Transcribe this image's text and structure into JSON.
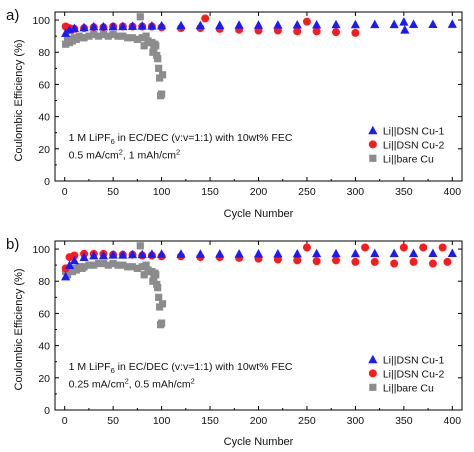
{
  "chart_data": [
    {
      "panel": "a)",
      "type": "scatter",
      "xlabel": "Cycle Number",
      "ylabel": "Coulombic Efficiency (%)",
      "xlim": [
        -10,
        410
      ],
      "ylim": [
        0,
        105
      ],
      "xticks": [
        0,
        50,
        100,
        150,
        200,
        250,
        300,
        350,
        400
      ],
      "yticks": [
        0,
        20,
        40,
        60,
        80,
        100
      ],
      "grid": false,
      "legend_position": "bottom-right",
      "annotation": {
        "line1_pre": "1 M LiPF",
        "line1_sub": "6",
        "line1_post": " in EC/DEC (v:v=1:1) with 10wt% FEC",
        "line2_a": "0.5 mA/cm",
        "line2_sup1": "2",
        "line2_b": ", 1 mAh/cm",
        "line2_sup2": "2"
      },
      "series": [
        {
          "name": "Li||DSN Cu-1",
          "color": "#1a1aff",
          "marker": "triangle",
          "x": [
            1,
            5,
            10,
            20,
            30,
            40,
            50,
            60,
            70,
            80,
            90,
            100,
            120,
            140,
            160,
            180,
            200,
            220,
            240,
            260,
            280,
            300,
            320,
            340,
            350,
            351,
            360,
            380,
            400
          ],
          "y": [
            92,
            94,
            95,
            95.5,
            96,
            96,
            96,
            96.2,
            96.3,
            96.5,
            96.5,
            96.6,
            96.7,
            96.8,
            96.9,
            97,
            97,
            97.1,
            97.2,
            97.2,
            97.3,
            97.3,
            97.4,
            97.4,
            99,
            94,
            97.5,
            97.5,
            97.6
          ]
        },
        {
          "name": "Li||DSN Cu-2",
          "color": "#ff1a1a",
          "marker": "circle",
          "x": [
            1,
            5,
            10,
            20,
            30,
            40,
            50,
            60,
            70,
            80,
            90,
            100,
            120,
            140,
            145,
            160,
            180,
            200,
            220,
            240,
            250,
            260,
            280,
            300
          ],
          "y": [
            96,
            95,
            94.5,
            95,
            95.5,
            95.5,
            96,
            96,
            96,
            96,
            96,
            95.5,
            95,
            95,
            101,
            94.5,
            94,
            93.5,
            93.5,
            93,
            99,
            93,
            92.5,
            92
          ]
        },
        {
          "name": "Li||bare Cu",
          "color": "#8c8c8c",
          "marker": "square",
          "x": [
            1,
            3,
            5,
            8,
            10,
            12,
            15,
            18,
            20,
            25,
            30,
            35,
            40,
            45,
            50,
            55,
            60,
            65,
            70,
            75,
            78,
            80,
            82,
            84,
            86,
            88,
            90,
            91,
            92,
            93,
            94,
            95,
            96,
            97,
            98,
            99,
            100,
            101
          ],
          "y": [
            85,
            88,
            86,
            87,
            89,
            88,
            90,
            89,
            89,
            90,
            91,
            90,
            91,
            90,
            91,
            90,
            90,
            89,
            89,
            88,
            102,
            89,
            84,
            90,
            87,
            86,
            86,
            80,
            82,
            85,
            84,
            78,
            76,
            70,
            64,
            53,
            54,
            66
          ]
        }
      ]
    },
    {
      "panel": "b)",
      "type": "scatter",
      "xlabel": "Cycle Number",
      "ylabel": "Coulombic Efficiency (%)",
      "xlim": [
        -10,
        410
      ],
      "ylim": [
        0,
        105
      ],
      "xticks": [
        0,
        50,
        100,
        150,
        200,
        250,
        300,
        350,
        400
      ],
      "yticks": [
        0,
        20,
        40,
        60,
        80,
        100
      ],
      "grid": false,
      "legend_position": "bottom-right",
      "annotation": {
        "line1_pre": "1 M LiPF",
        "line1_sub": "6",
        "line1_post": " in EC/DEC (v:v=1:1) with 10wt% FEC",
        "line2_a": "0.25 mA/cm",
        "line2_sup1": "2",
        "line2_b": ", 0.5 mAh/cm",
        "line2_sup2": "2"
      },
      "series": [
        {
          "name": "Li||DSN Cu-1",
          "color": "#1a1aff",
          "marker": "triangle",
          "x": [
            1,
            5,
            10,
            20,
            30,
            40,
            50,
            60,
            70,
            80,
            90,
            100,
            120,
            140,
            160,
            180,
            200,
            220,
            240,
            260,
            280,
            300,
            320,
            340,
            360,
            380,
            400
          ],
          "y": [
            83,
            90,
            93,
            95,
            96,
            96,
            96.5,
            96.5,
            96.7,
            96.8,
            97,
            97,
            97,
            97,
            97.1,
            97.1,
            97.2,
            97.2,
            97.2,
            97.3,
            97.3,
            97.3,
            97.4,
            97.4,
            97.4,
            97.5,
            97.5
          ]
        },
        {
          "name": "Li||DSN Cu-2",
          "color": "#ff1a1a",
          "marker": "circle",
          "x": [
            1,
            5,
            10,
            20,
            30,
            40,
            50,
            60,
            70,
            80,
            90,
            100,
            120,
            140,
            160,
            180,
            200,
            220,
            240,
            250,
            260,
            280,
            300,
            310,
            320,
            340,
            350,
            360,
            370,
            380,
            390,
            395
          ],
          "y": [
            88,
            95,
            96,
            97,
            97,
            97,
            96.5,
            96.5,
            96.5,
            96,
            96,
            95.5,
            95.5,
            95,
            95,
            94.5,
            94,
            93.5,
            93,
            101,
            92.5,
            93,
            92,
            101,
            92,
            91,
            101,
            92,
            101,
            91,
            101,
            92
          ]
        },
        {
          "name": "Li||bare Cu",
          "color": "#8c8c8c",
          "marker": "square",
          "x": [
            1,
            3,
            5,
            8,
            10,
            12,
            15,
            18,
            20,
            25,
            30,
            35,
            40,
            45,
            50,
            55,
            60,
            65,
            70,
            75,
            78,
            80,
            82,
            84,
            86,
            88,
            90,
            91,
            92,
            93,
            94,
            95,
            96,
            97,
            98,
            99,
            100,
            101
          ],
          "y": [
            86,
            84,
            87,
            86,
            88,
            87,
            89,
            88,
            89,
            90,
            90,
            91,
            91,
            90,
            91,
            90,
            90,
            89,
            89,
            88,
            102,
            89,
            84,
            90,
            87,
            86,
            86,
            80,
            82,
            85,
            84,
            78,
            76,
            70,
            64,
            53,
            54,
            66
          ]
        }
      ]
    }
  ]
}
